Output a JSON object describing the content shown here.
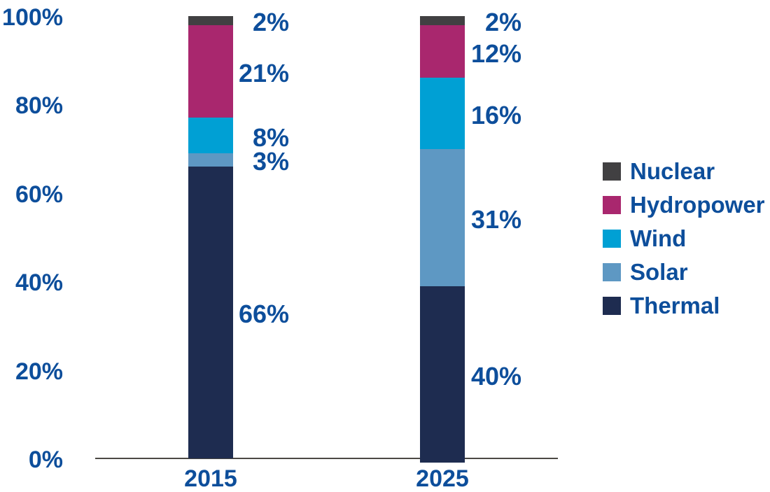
{
  "colors": {
    "label_text": "#0d4e9b",
    "axis_line": "#4c4944"
  },
  "chart_data": {
    "type": "bar",
    "stacked": true,
    "title": "",
    "xlabel": "",
    "ylabel": "",
    "unit": "%",
    "grid": false,
    "legend_position": "right",
    "categories": [
      "2015",
      "2025"
    ],
    "y_ticks": [
      "0%",
      "20%",
      "40%",
      "60%",
      "80%",
      "100%"
    ],
    "ylim": [
      0,
      100
    ],
    "series": [
      {
        "name": "Nuclear",
        "color": "#414042",
        "values": [
          2,
          2
        ]
      },
      {
        "name": "Hydropower",
        "color": "#a9276e",
        "values": [
          21,
          12
        ]
      },
      {
        "name": "Wind",
        "color": "#00a0d4",
        "values": [
          8,
          16
        ]
      },
      {
        "name": "Solar",
        "color": "#5e98c3",
        "values": [
          3,
          31
        ]
      },
      {
        "name": "Thermal",
        "color": "#1e2c50",
        "values": [
          66,
          40
        ]
      }
    ],
    "value_labels": [
      [
        "2%",
        "21%",
        "8%",
        "3%",
        "66%"
      ],
      [
        "2%",
        "12%",
        "16%",
        "31%",
        "40%"
      ]
    ]
  }
}
